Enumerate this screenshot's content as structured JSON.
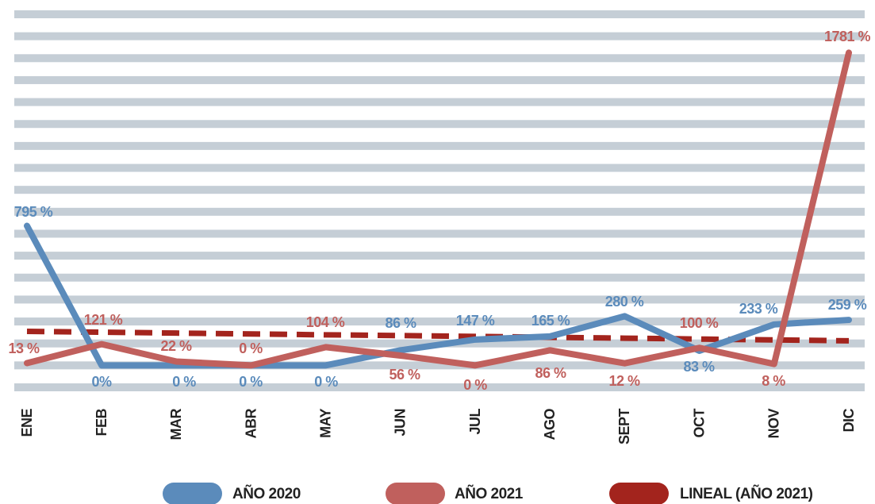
{
  "chart_data": {
    "type": "line",
    "categories": [
      "ENE",
      "FEB",
      "MAR",
      "ABR",
      "MAY",
      "JUN",
      "JUL",
      "AGO",
      "SEPT",
      "OCT",
      "NOV",
      "DIC"
    ],
    "series": [
      {
        "name": "AÑO 2020",
        "color": "#5b8bbb",
        "values": [
          795,
          0,
          0,
          0,
          0,
          86,
          147,
          165,
          280,
          83,
          233,
          259
        ],
        "value_labels": [
          "795 %",
          "0%",
          "0 %",
          "0 %",
          "0 %",
          "86 %",
          "147 %",
          "165 %",
          "280 %",
          "83 %",
          "233 %",
          "259 %"
        ]
      },
      {
        "name": "AÑO 2021",
        "color": "#c0605d",
        "values": [
          13,
          121,
          22,
          0,
          104,
          56,
          0,
          86,
          12,
          100,
          8,
          1781
        ],
        "value_labels": [
          "13 %",
          "121 %",
          "22 %",
          "0 %",
          "104 %",
          "56 %",
          "0 %",
          "86 %",
          "12 %",
          "100 %",
          "8 %",
          "1781 %"
        ]
      },
      {
        "name": "LINEAL (AÑO 2021)",
        "color": "#a3241d",
        "dashed": true,
        "values": [
          194,
          189,
          184,
          179,
          174,
          170,
          165,
          160,
          155,
          150,
          145,
          140
        ]
      }
    ],
    "ylim": [
      -125,
      2000
    ],
    "yticks": [
      -125,
      0,
      125,
      250,
      375,
      500,
      625,
      750,
      875,
      1000,
      1125,
      1250,
      1375,
      1500,
      1625,
      1750,
      1875,
      2000
    ],
    "grid": true,
    "legend": "bottom"
  }
}
